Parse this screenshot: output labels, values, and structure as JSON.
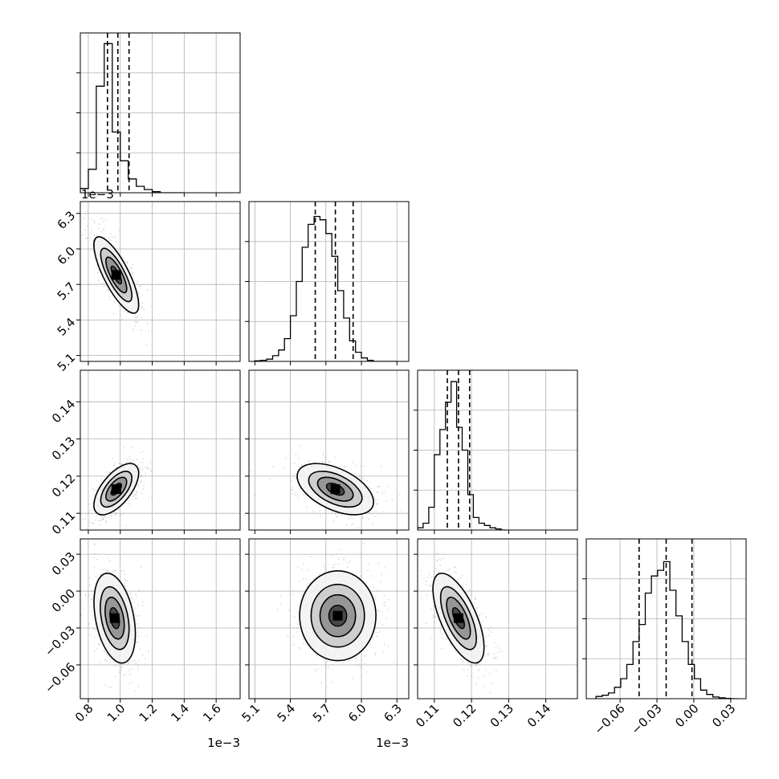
{
  "chart_data": {
    "type": "corner",
    "parameters": 4,
    "grid": true,
    "colors": {
      "hist": "#000000",
      "quantile": "#000000",
      "scatter": "#999999",
      "grid": "#b0b0b0"
    },
    "quantiles": [
      0.16,
      0.5,
      0.84
    ],
    "axes": [
      {
        "lim": [
          0.75,
          1.75
        ],
        "ticks": [
          0.8,
          1.0,
          1.2,
          1.4,
          1.6
        ],
        "tick_labels": [
          "0.8",
          "1.0",
          "1.2",
          "1.4",
          "1.6"
        ],
        "offset": "1e−3"
      },
      {
        "lim": [
          5.05,
          6.4
        ],
        "ticks": [
          5.1,
          5.4,
          5.7,
          6.0,
          6.3
        ],
        "tick_labels": [
          "5.1",
          "5.4",
          "5.7",
          "6.0",
          "6.3"
        ],
        "offset": "1e−3"
      },
      {
        "lim": [
          0.1055,
          0.1485
        ],
        "ticks": [
          0.11,
          0.12,
          0.13,
          0.14
        ],
        "tick_labels": [
          "0.11",
          "0.12",
          "0.13",
          "0.14"
        ],
        "offset": ""
      },
      {
        "lim": [
          -0.0875,
          0.0425
        ],
        "ticks": [
          -0.06,
          -0.03,
          0.0,
          0.03
        ],
        "tick_labels": [
          "−0.06",
          "−0.03",
          "0.00",
          "0.03"
        ],
        "offset": ""
      }
    ],
    "marginals": [
      {
        "q": [
          0.92,
          0.985,
          1.055
        ],
        "bins": [
          0.75,
          0.8,
          0.85,
          0.9,
          0.95,
          1.0,
          1.05,
          1.1,
          1.15,
          1.2,
          1.25,
          1.3,
          1.35,
          1.4
        ],
        "counts": [
          4,
          22,
          100,
          140,
          57,
          30,
          13,
          6,
          3,
          1,
          0,
          0,
          0
        ],
        "ylim": [
          0,
          150
        ]
      },
      {
        "q": [
          5.61,
          5.78,
          5.93
        ],
        "bins": [
          5.1,
          5.15,
          5.2,
          5.25,
          5.3,
          5.35,
          5.4,
          5.45,
          5.5,
          5.55,
          5.6,
          5.65,
          5.7,
          5.75,
          5.8,
          5.85,
          5.9,
          5.95,
          6.0,
          6.05,
          6.1,
          6.15,
          6.2,
          6.25,
          6.3
        ],
        "counts": [
          0.5,
          1,
          2,
          5,
          10,
          20,
          40,
          70,
          100,
          120,
          127,
          124,
          112,
          92,
          62,
          38,
          18,
          8,
          3,
          1,
          0,
          0,
          0,
          0
        ],
        "ylim": [
          0,
          140
        ]
      },
      {
        "q": [
          0.1135,
          0.1165,
          0.1195
        ],
        "bins": [
          0.1055,
          0.107,
          0.1085,
          0.11,
          0.1115,
          0.113,
          0.1145,
          0.116,
          0.1175,
          0.119,
          0.1205,
          0.122,
          0.1235,
          0.125,
          0.1265,
          0.128,
          0.1295
        ],
        "counts": [
          2,
          6,
          20,
          66,
          88,
          112,
          130,
          90,
          70,
          31,
          11,
          6,
          4,
          2,
          1,
          0
        ],
        "ylim": [
          0,
          140
        ]
      },
      {
        "q": [
          -0.0445,
          -0.0225,
          -0.0015
        ],
        "bins": [
          -0.0795,
          -0.0745,
          -0.0695,
          -0.0645,
          -0.0595,
          -0.0545,
          -0.0495,
          -0.0445,
          -0.0395,
          -0.0345,
          -0.0295,
          -0.0245,
          -0.0195,
          -0.0145,
          -0.0095,
          -0.0045,
          0.0005,
          0.0055,
          0.0105,
          0.0155,
          0.0205,
          0.0255,
          0.0305,
          0.0355
        ],
        "counts": [
          0.8,
          1.2,
          2,
          4,
          7,
          12,
          20,
          26,
          37,
          43,
          45,
          48,
          38,
          29,
          20,
          12,
          7,
          3,
          1.5,
          0.6,
          0.3,
          0.1,
          0
        ],
        "ylim": [
          0,
          56
        ]
      }
    ],
    "pairs": [
      {
        "row": 1,
        "col": 0,
        "mean": [
          0.975,
          5.78
        ],
        "sd": [
          0.065,
          0.15
        ],
        "rho": -0.78
      },
      {
        "row": 2,
        "col": 0,
        "mean": [
          0.975,
          0.1165
        ],
        "sd": [
          0.065,
          0.0032
        ],
        "rho": 0.62
      },
      {
        "row": 2,
        "col": 1,
        "mean": [
          5.78,
          0.1165
        ],
        "sd": [
          0.15,
          0.0032
        ],
        "rho": -0.5
      },
      {
        "row": 3,
        "col": 0,
        "mean": [
          0.965,
          -0.022
        ],
        "sd": [
          0.06,
          0.017
        ],
        "rho": -0.35
      },
      {
        "row": 3,
        "col": 1,
        "mean": [
          5.8,
          -0.02
        ],
        "sd": [
          0.15,
          0.017
        ],
        "rho": 0.0
      },
      {
        "row": 3,
        "col": 2,
        "mean": [
          0.1165,
          -0.022
        ],
        "sd": [
          0.0032,
          0.017
        ],
        "rho": -0.65
      }
    ]
  }
}
